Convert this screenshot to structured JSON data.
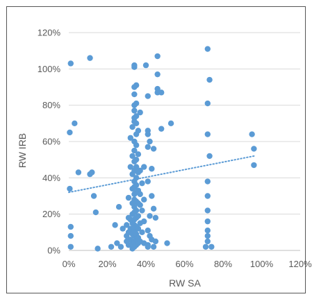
{
  "chart_data": {
    "type": "scatter",
    "title": "",
    "xlabel": "RW SA",
    "ylabel": "RW IRB",
    "xlim": [
      0,
      120
    ],
    "ylim": [
      0,
      120
    ],
    "x_ticks": [
      "0%",
      "20%",
      "40%",
      "60%",
      "80%",
      "100%",
      "120%"
    ],
    "y_ticks": [
      "0%",
      "20%",
      "40%",
      "60%",
      "80%",
      "100%",
      "120%"
    ],
    "grid": "horizontal",
    "legend": "none",
    "point_color": "#5B9BD5",
    "trendline": {
      "style": "dotted",
      "from": [
        0,
        32
      ],
      "to": [
        96,
        52
      ]
    },
    "points": [
      [
        1,
        103
      ],
      [
        0.5,
        65
      ],
      [
        3,
        70
      ],
      [
        5,
        43
      ],
      [
        0.5,
        34
      ],
      [
        1,
        13
      ],
      [
        1,
        8
      ],
      [
        1,
        2
      ],
      [
        11,
        106
      ],
      [
        11,
        42
      ],
      [
        12,
        43
      ],
      [
        13,
        30
      ],
      [
        14,
        21
      ],
      [
        15,
        1
      ],
      [
        22,
        2
      ],
      [
        24,
        14
      ],
      [
        25,
        4
      ],
      [
        26,
        24
      ],
      [
        27,
        2
      ],
      [
        28,
        12
      ],
      [
        30,
        5
      ],
      [
        30,
        8
      ],
      [
        30,
        14
      ],
      [
        31,
        3
      ],
      [
        31,
        10
      ],
      [
        31,
        18
      ],
      [
        31,
        29
      ],
      [
        32,
        6
      ],
      [
        32,
        12
      ],
      [
        32,
        17
      ],
      [
        32,
        46
      ],
      [
        32,
        62
      ],
      [
        33,
        1
      ],
      [
        33,
        4
      ],
      [
        33,
        9
      ],
      [
        33,
        15
      ],
      [
        33,
        20
      ],
      [
        33,
        26
      ],
      [
        33,
        34
      ],
      [
        33,
        42
      ],
      [
        33,
        52
      ],
      [
        33,
        68
      ],
      [
        34,
        101
      ],
      [
        34,
        102
      ],
      [
        34,
        90
      ],
      [
        34,
        86
      ],
      [
        34,
        80
      ],
      [
        34,
        77
      ],
      [
        34,
        73
      ],
      [
        34,
        71
      ],
      [
        34,
        60
      ],
      [
        34,
        55
      ],
      [
        34,
        49
      ],
      [
        34,
        44
      ],
      [
        34,
        38
      ],
      [
        34,
        35
      ],
      [
        34,
        31
      ],
      [
        34,
        28
      ],
      [
        34,
        24
      ],
      [
        34,
        21
      ],
      [
        34,
        17
      ],
      [
        34,
        14
      ],
      [
        34,
        11
      ],
      [
        34,
        8
      ],
      [
        34,
        5
      ],
      [
        34,
        2
      ],
      [
        35,
        91
      ],
      [
        35,
        81
      ],
      [
        35,
        74
      ],
      [
        35,
        70
      ],
      [
        35,
        64
      ],
      [
        35,
        58
      ],
      [
        35,
        50
      ],
      [
        35,
        46
      ],
      [
        35,
        40
      ],
      [
        35,
        36
      ],
      [
        35,
        32
      ],
      [
        35,
        27
      ],
      [
        35,
        22
      ],
      [
        35,
        18
      ],
      [
        35,
        13
      ],
      [
        35,
        9
      ],
      [
        35,
        6
      ],
      [
        35,
        3
      ],
      [
        36,
        66
      ],
      [
        36,
        53
      ],
      [
        36,
        43
      ],
      [
        36,
        33
      ],
      [
        36,
        26
      ],
      [
        36,
        19
      ],
      [
        36,
        12
      ],
      [
        36,
        7
      ],
      [
        36,
        4
      ],
      [
        37,
        76
      ],
      [
        37,
        44
      ],
      [
        37,
        31
      ],
      [
        37,
        25
      ],
      [
        37,
        15
      ],
      [
        37,
        5
      ],
      [
        38,
        37
      ],
      [
        38,
        22
      ],
      [
        38,
        10
      ],
      [
        39,
        46
      ],
      [
        39,
        28
      ],
      [
        39,
        16
      ],
      [
        39,
        4
      ],
      [
        40,
        102
      ],
      [
        41,
        85
      ],
      [
        41,
        66
      ],
      [
        41,
        64
      ],
      [
        41,
        57
      ],
      [
        41,
        38
      ],
      [
        41,
        11
      ],
      [
        41,
        3
      ],
      [
        41,
        2
      ],
      [
        42,
        60
      ],
      [
        42,
        19
      ],
      [
        42,
        8
      ],
      [
        43,
        45
      ],
      [
        43,
        30
      ],
      [
        43,
        6
      ],
      [
        44,
        56
      ],
      [
        44,
        23
      ],
      [
        44,
        2
      ],
      [
        45,
        18
      ],
      [
        45,
        5
      ],
      [
        46,
        97
      ],
      [
        46,
        107
      ],
      [
        46,
        89
      ],
      [
        46,
        87
      ],
      [
        48,
        87
      ],
      [
        48,
        67
      ],
      [
        51,
        4
      ],
      [
        53,
        70
      ],
      [
        71,
        2
      ],
      [
        72,
        5
      ],
      [
        72,
        8
      ],
      [
        72,
        11
      ],
      [
        72,
        16
      ],
      [
        72,
        22
      ],
      [
        72,
        30
      ],
      [
        72,
        38
      ],
      [
        72,
        64
      ],
      [
        72,
        81
      ],
      [
        72,
        111
      ],
      [
        73,
        94
      ],
      [
        73,
        52
      ],
      [
        74,
        2
      ],
      [
        95,
        64
      ],
      [
        96,
        56
      ],
      [
        96,
        47
      ]
    ]
  }
}
